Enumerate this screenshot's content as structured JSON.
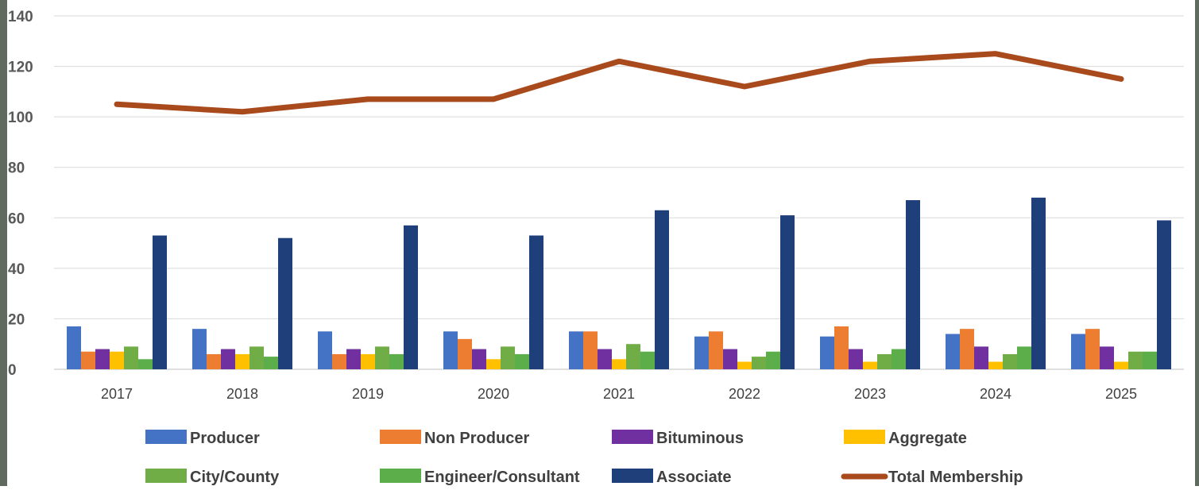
{
  "chart_data": {
    "type": "bar",
    "title": "",
    "xlabel": "",
    "ylabel": "",
    "ylim": [
      0,
      140
    ],
    "yticks": [
      "0",
      "20",
      "40",
      "60",
      "80",
      "100",
      "120",
      "140"
    ],
    "grid": true,
    "legend_position": "bottom",
    "categories": [
      "2017",
      "2018",
      "2019",
      "2020",
      "2021",
      "2022",
      "2023",
      "2024",
      "2025"
    ],
    "series": [
      {
        "name": "Producer",
        "type": "bar",
        "color": "#4472c4",
        "values": [
          17,
          16,
          15,
          15,
          15,
          13,
          13,
          14,
          14
        ]
      },
      {
        "name": "Non Producer",
        "type": "bar",
        "color": "#ed7d31",
        "values": [
          7,
          6,
          6,
          12,
          15,
          15,
          17,
          16,
          16
        ]
      },
      {
        "name": "Bituminous",
        "type": "bar",
        "color": "#7030a0",
        "values": [
          8,
          8,
          8,
          8,
          8,
          8,
          8,
          9,
          9
        ]
      },
      {
        "name": "Aggregate",
        "type": "bar",
        "color": "#ffc000",
        "values": [
          7,
          6,
          6,
          4,
          4,
          3,
          3,
          3,
          3
        ]
      },
      {
        "name": "City/County",
        "type": "bar",
        "color": "#70ad47",
        "values": [
          9,
          9,
          9,
          9,
          10,
          5,
          6,
          6,
          7
        ]
      },
      {
        "name": "Engineer/Consultant",
        "type": "bar",
        "color": "#5bae4a",
        "values": [
          4,
          5,
          6,
          6,
          7,
          7,
          8,
          9,
          7
        ]
      },
      {
        "name": "Associate",
        "type": "bar",
        "color": "#1f3f7a",
        "values": [
          53,
          52,
          57,
          53,
          63,
          61,
          67,
          68,
          59
        ]
      },
      {
        "name": "Total Membership",
        "type": "line",
        "color": "#a94a1c",
        "values": [
          105,
          102,
          107,
          107,
          122,
          112,
          122,
          125,
          115
        ]
      }
    ]
  }
}
